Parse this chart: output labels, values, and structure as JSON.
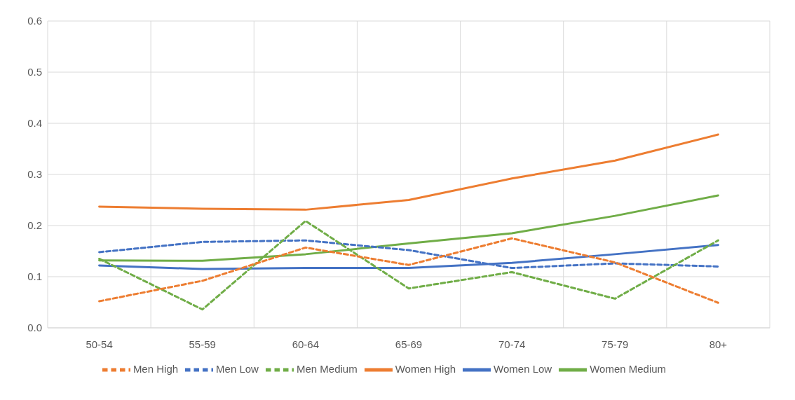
{
  "chart_data": {
    "type": "line",
    "categories": [
      "50-54",
      "55-59",
      "60-64",
      "65-69",
      "70-74",
      "75-79",
      "80+"
    ],
    "ylim": [
      0,
      0.6
    ],
    "yticks": [
      {
        "value": 0,
        "label": "0.0"
      },
      {
        "value": 0.1,
        "label": "0.1"
      },
      {
        "value": 0.2,
        "label": "0.2"
      },
      {
        "value": 0.3,
        "label": "0.3"
      },
      {
        "value": 0.4,
        "label": "0.4"
      },
      {
        "value": 0.5,
        "label": "0.5"
      },
      {
        "value": 0.6,
        "label": "0.6"
      }
    ],
    "grid": true,
    "legend": "bottom",
    "marker": "none",
    "series": [
      {
        "name": "Women Low",
        "color": "#4472c4",
        "line_style": "solid",
        "values": [
          0.122,
          0.115,
          0.117,
          0.117,
          0.127,
          0.144,
          0.162
        ]
      },
      {
        "name": "Women Medium",
        "color": "#70ad47",
        "line_style": "solid",
        "values": [
          0.132,
          0.131,
          0.144,
          0.165,
          0.185,
          0.219,
          0.259
        ]
      },
      {
        "name": "Women High",
        "color": "#ed7d31",
        "line_style": "solid",
        "values": [
          0.237,
          0.233,
          0.231,
          0.25,
          0.292,
          0.327,
          0.378
        ]
      },
      {
        "name": "Men Low",
        "color": "#4472c4",
        "line_style": "dashed",
        "values": [
          0.148,
          0.168,
          0.171,
          0.152,
          0.117,
          0.126,
          0.12
        ]
      },
      {
        "name": "Men Medium",
        "color": "#70ad47",
        "line_style": "dashed",
        "values": [
          0.135,
          0.036,
          0.209,
          0.077,
          0.109,
          0.057,
          0.171
        ]
      },
      {
        "name": "Men High",
        "color": "#ed7d31",
        "line_style": "dashed",
        "values": [
          0.052,
          0.092,
          0.157,
          0.123,
          0.175,
          0.128,
          0.049
        ]
      }
    ]
  }
}
